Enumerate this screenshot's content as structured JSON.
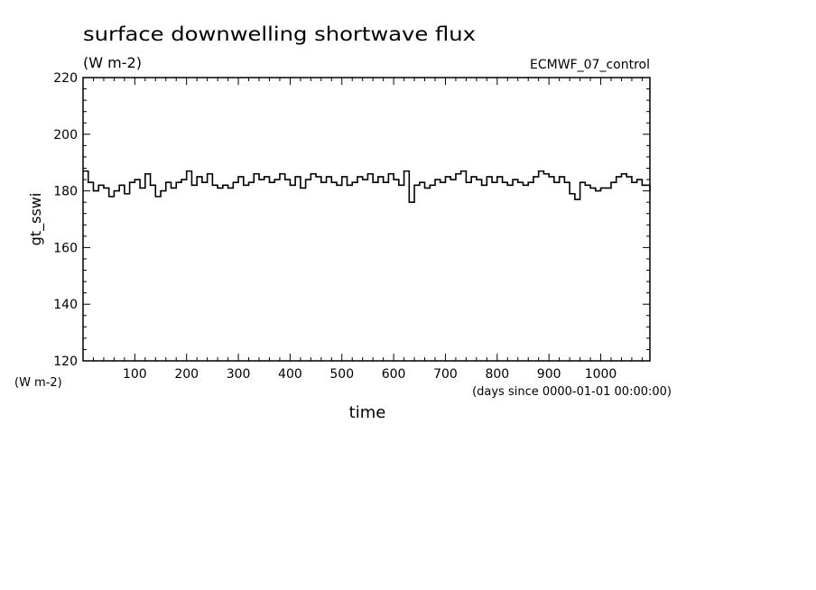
{
  "chart_data": {
    "type": "line",
    "title": "surface downwelling shortwave flux",
    "title_units": "(W m-2)",
    "top_right_label": "ECMWF_07_control",
    "xlabel": "time",
    "x_units": "(days since 0000-01-01 00:00:00)",
    "ylabel": "gt_sswi",
    "y_units": "(W m-2)",
    "xlim": [
      0,
      1095
    ],
    "ylim": [
      120,
      220
    ],
    "x_ticks": [
      100,
      200,
      300,
      400,
      500,
      600,
      700,
      800,
      900,
      1000
    ],
    "y_ticks": [
      120,
      140,
      160,
      180,
      200,
      220
    ],
    "grid": false,
    "series": [
      {
        "color": "#000000",
        "x": [
          0,
          10,
          20,
          30,
          40,
          50,
          60,
          70,
          80,
          90,
          100,
          110,
          120,
          130,
          140,
          150,
          160,
          170,
          180,
          190,
          200,
          210,
          220,
          230,
          240,
          250,
          260,
          270,
          280,
          290,
          300,
          310,
          320,
          330,
          340,
          350,
          360,
          370,
          380,
          390,
          400,
          410,
          420,
          430,
          440,
          450,
          460,
          470,
          480,
          490,
          500,
          510,
          520,
          530,
          540,
          550,
          560,
          570,
          580,
          590,
          600,
          610,
          620,
          630,
          640,
          650,
          660,
          670,
          680,
          690,
          700,
          710,
          720,
          730,
          740,
          750,
          760,
          770,
          780,
          790,
          800,
          810,
          820,
          830,
          840,
          850,
          860,
          870,
          880,
          890,
          900,
          910,
          920,
          930,
          940,
          950,
          960,
          970,
          980,
          990,
          1000,
          1010,
          1020,
          1030,
          1040,
          1050,
          1060,
          1070,
          1080,
          1090,
          1095
        ],
        "y": [
          187,
          183,
          180,
          182,
          181,
          178,
          180,
          182,
          179,
          183,
          184,
          181,
          186,
          182,
          178,
          180,
          183,
          181,
          183,
          184,
          187,
          182,
          185,
          183,
          186,
          182,
          181,
          182,
          181,
          183,
          185,
          182,
          183,
          186,
          184,
          185,
          183,
          184,
          186,
          184,
          182,
          185,
          181,
          184,
          186,
          185,
          183,
          185,
          183,
          182,
          185,
          182,
          183,
          185,
          184,
          186,
          183,
          185,
          183,
          186,
          184,
          182,
          187,
          176,
          182,
          183,
          181,
          182,
          184,
          183,
          185,
          184,
          186,
          187,
          183,
          185,
          184,
          182,
          185,
          183,
          185,
          183,
          182,
          184,
          183,
          182,
          183,
          185,
          187,
          186,
          185,
          183,
          185,
          183,
          179,
          177,
          183,
          182,
          181,
          180,
          181,
          181,
          183,
          185,
          186,
          185,
          183,
          184,
          182,
          182,
          180
        ]
      }
    ]
  }
}
